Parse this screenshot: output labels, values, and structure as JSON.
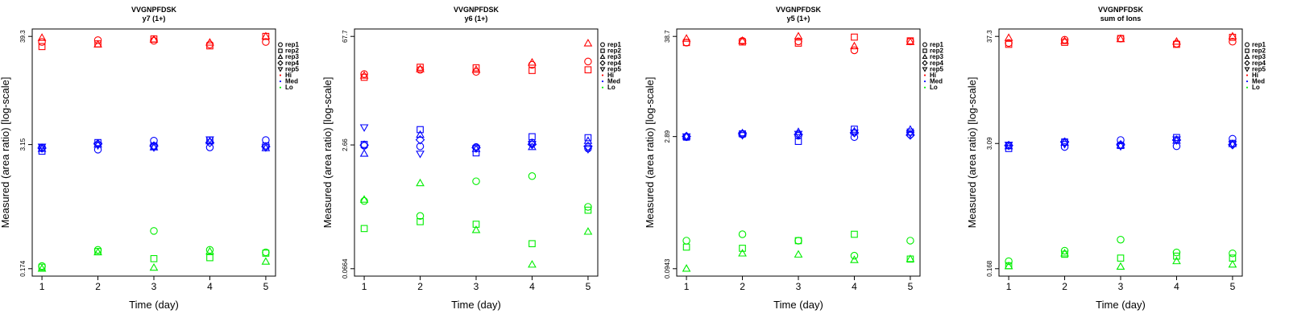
{
  "chart_data": [
    {
      "type": "scatter",
      "title": "VVGNPFDSK",
      "subtitle": "y7 (1+)",
      "xlabel": "Time (day)",
      "ylabel": "Measured (area ratio) [log-scale]",
      "log_scale_y": true,
      "x_ticks": [
        1,
        2,
        3,
        4,
        5
      ],
      "y_ticks": [
        "0.174",
        "3.15",
        "39.3"
      ],
      "ylim": [
        0.174,
        39.3
      ],
      "legend": {
        "position": "right",
        "entries": [
          {
            "label": "rep1",
            "marker": "circle",
            "color": "#000000"
          },
          {
            "label": "rep2",
            "marker": "square",
            "color": "#000000"
          },
          {
            "label": "rep3",
            "marker": "triangle-up",
            "color": "#000000"
          },
          {
            "label": "rep4",
            "marker": "diamond",
            "color": "#000000"
          },
          {
            "label": "rep5",
            "marker": "triangle-down",
            "color": "#000000"
          },
          {
            "label": "Hi",
            "marker": "dot",
            "color": "#ff0000"
          },
          {
            "label": "Med",
            "marker": "dot",
            "color": "#0000ff"
          },
          {
            "label": "Lo",
            "marker": "dot",
            "color": "#00ee00"
          }
        ]
      },
      "series": [
        {
          "level": "Hi",
          "rep": "rep1",
          "x": [
            1,
            2,
            3,
            4,
            5
          ],
          "y": [
            34.5,
            36.0,
            35.5,
            32.5,
            34.5
          ]
        },
        {
          "level": "Hi",
          "rep": "rep2",
          "x": [
            1,
            2,
            3,
            4,
            5
          ],
          "y": [
            31.0,
            33.0,
            37.0,
            31.5,
            39.3
          ]
        },
        {
          "level": "Hi",
          "rep": "rep3",
          "x": [
            1,
            2,
            3,
            4,
            5
          ],
          "y": [
            38.0,
            32.5,
            36.5,
            34.0,
            39.3
          ]
        },
        {
          "level": "Med",
          "rep": "rep1",
          "x": [
            1,
            2,
            3,
            4,
            5
          ],
          "y": [
            2.95,
            2.8,
            3.45,
            2.95,
            3.5
          ]
        },
        {
          "level": "Med",
          "rep": "rep2",
          "x": [
            1,
            2,
            3,
            4,
            5
          ],
          "y": [
            2.7,
            3.3,
            3.05,
            3.5,
            3.05
          ]
        },
        {
          "level": "Med",
          "rep": "rep3",
          "x": [
            1,
            2,
            3,
            4,
            5
          ],
          "y": [
            2.85,
            3.15,
            2.95,
            3.4,
            2.9
          ]
        },
        {
          "level": "Med",
          "rep": "rep4",
          "x": [
            1,
            2,
            3,
            4,
            5
          ],
          "y": [
            2.9,
            3.2,
            3.05,
            3.3,
            3.0
          ]
        },
        {
          "level": "Med",
          "rep": "rep5",
          "x": [
            1,
            2,
            3,
            4,
            5
          ],
          "y": [
            3.0,
            3.1,
            2.95,
            3.55,
            2.95
          ]
        },
        {
          "level": "Lo",
          "rep": "rep1",
          "x": [
            1,
            2,
            3,
            4,
            5
          ],
          "y": [
            0.185,
            0.27,
            0.42,
            0.27,
            0.255
          ]
        },
        {
          "level": "Lo",
          "rep": "rep2",
          "x": [
            1,
            2,
            3,
            4,
            5
          ],
          "y": [
            0.18,
            0.26,
            0.22,
            0.225,
            0.25
          ]
        },
        {
          "level": "Lo",
          "rep": "rep3",
          "x": [
            1,
            2,
            3,
            4,
            5
          ],
          "y": [
            0.174,
            0.255,
            0.178,
            0.26,
            0.205
          ]
        }
      ]
    },
    {
      "type": "scatter",
      "title": "VVGNPFDSK",
      "subtitle": "y6 (1+)",
      "xlabel": "Time (day)",
      "ylabel": "Measured (area ratio) [log-scale]",
      "log_scale_y": true,
      "x_ticks": [
        1,
        2,
        3,
        4,
        5
      ],
      "y_ticks": [
        "0.0664",
        "2.66",
        "67.7"
      ],
      "ylim": [
        0.0664,
        67.7
      ],
      "legend": {
        "position": "right",
        "entries": [
          {
            "label": "rep1",
            "marker": "circle",
            "color": "#000000"
          },
          {
            "label": "rep2",
            "marker": "square",
            "color": "#000000"
          },
          {
            "label": "rep3",
            "marker": "triangle-up",
            "color": "#000000"
          },
          {
            "label": "rep4",
            "marker": "diamond",
            "color": "#000000"
          },
          {
            "label": "rep5",
            "marker": "triangle-down",
            "color": "#000000"
          },
          {
            "label": "Hi",
            "marker": "dot",
            "color": "#ff0000"
          },
          {
            "label": "Med",
            "marker": "dot",
            "color": "#0000ff"
          },
          {
            "label": "Lo",
            "marker": "dot",
            "color": "#00ee00"
          }
        ]
      },
      "series": [
        {
          "level": "Hi",
          "rep": "rep1",
          "x": [
            1,
            2,
            3,
            4,
            5
          ],
          "y": [
            22.0,
            25.0,
            23.5,
            29.0,
            32.0
          ]
        },
        {
          "level": "Hi",
          "rep": "rep2",
          "x": [
            1,
            2,
            3,
            4,
            5
          ],
          "y": [
            20.0,
            27.0,
            26.5,
            24.5,
            25.0
          ]
        },
        {
          "level": "Hi",
          "rep": "rep3",
          "x": [
            1,
            2,
            3,
            4,
            5
          ],
          "y": [
            21.0,
            25.5,
            25.0,
            31.0,
            55.0
          ]
        },
        {
          "level": "Med",
          "rep": "rep1",
          "x": [
            1,
            2,
            3,
            4,
            5
          ],
          "y": [
            2.6,
            2.55,
            2.5,
            2.85,
            2.4
          ]
        },
        {
          "level": "Med",
          "rep": "rep2",
          "x": [
            1,
            2,
            3,
            4,
            5
          ],
          "y": [
            2.7,
            4.2,
            2.1,
            3.4,
            3.3
          ]
        },
        {
          "level": "Med",
          "rep": "rep3",
          "x": [
            1,
            2,
            3,
            4,
            5
          ],
          "y": [
            2.05,
            3.6,
            2.35,
            2.5,
            3.0
          ]
        },
        {
          "level": "Med",
          "rep": "rep4",
          "x": [
            1,
            2,
            3,
            4,
            5
          ],
          "y": [
            2.65,
            3.1,
            2.45,
            2.7,
            2.55
          ]
        },
        {
          "level": "Med",
          "rep": "rep5",
          "x": [
            1,
            2,
            3,
            4,
            5
          ],
          "y": [
            4.5,
            2.05,
            2.4,
            2.75,
            2.35
          ]
        },
        {
          "level": "Lo",
          "rep": "rep1",
          "x": [
            1,
            2,
            3,
            4,
            5
          ],
          "y": [
            0.5,
            0.32,
            0.9,
            1.05,
            0.42
          ]
        },
        {
          "level": "Lo",
          "rep": "rep2",
          "x": [
            1,
            2,
            3,
            4,
            5
          ],
          "y": [
            0.22,
            0.27,
            0.25,
            0.14,
            0.38
          ]
        },
        {
          "level": "Lo",
          "rep": "rep3",
          "x": [
            1,
            2,
            3,
            4,
            5
          ],
          "y": [
            0.52,
            0.85,
            0.21,
            0.075,
            0.2
          ]
        }
      ]
    },
    {
      "type": "scatter",
      "title": "VVGNPFDSK",
      "subtitle": "y5 (1+)",
      "xlabel": "Time (day)",
      "ylabel": "Measured (area ratio) [log-scale]",
      "log_scale_y": true,
      "x_ticks": [
        1,
        2,
        3,
        4,
        5
      ],
      "y_ticks": [
        "0.0943",
        "2.89",
        "38.7"
      ],
      "ylim": [
        0.0943,
        38.7
      ],
      "legend": {
        "position": "right",
        "entries": [
          {
            "label": "rep1",
            "marker": "circle",
            "color": "#000000"
          },
          {
            "label": "rep2",
            "marker": "square",
            "color": "#000000"
          },
          {
            "label": "rep3",
            "marker": "triangle-up",
            "color": "#000000"
          },
          {
            "label": "rep4",
            "marker": "diamond",
            "color": "#000000"
          },
          {
            "label": "rep5",
            "marker": "triangle-down",
            "color": "#000000"
          },
          {
            "label": "Hi",
            "marker": "dot",
            "color": "#ff0000"
          },
          {
            "label": "Med",
            "marker": "dot",
            "color": "#0000ff"
          },
          {
            "label": "Lo",
            "marker": "dot",
            "color": "#00ee00"
          }
        ]
      },
      "series": [
        {
          "level": "Hi",
          "rep": "rep1",
          "x": [
            1,
            2,
            3,
            4,
            5
          ],
          "y": [
            33.0,
            34.5,
            34.0,
            27.0,
            34.0
          ]
        },
        {
          "level": "Hi",
          "rep": "rep2",
          "x": [
            1,
            2,
            3,
            4,
            5
          ],
          "y": [
            33.0,
            33.5,
            32.5,
            38.0,
            34.5
          ]
        },
        {
          "level": "Hi",
          "rep": "rep3",
          "x": [
            1,
            2,
            3,
            4,
            5
          ],
          "y": [
            36.5,
            34.5,
            38.7,
            30.0,
            33.5
          ]
        },
        {
          "level": "Med",
          "rep": "rep1",
          "x": [
            1,
            2,
            3,
            4,
            5
          ],
          "y": [
            2.85,
            3.05,
            2.95,
            2.85,
            3.05
          ]
        },
        {
          "level": "Med",
          "rep": "rep2",
          "x": [
            1,
            2,
            3,
            4,
            5
          ],
          "y": [
            2.85,
            3.1,
            2.55,
            3.5,
            3.25
          ]
        },
        {
          "level": "Med",
          "rep": "rep3",
          "x": [
            1,
            2,
            3,
            4,
            5
          ],
          "y": [
            2.9,
            3.15,
            3.25,
            3.3,
            3.45
          ]
        },
        {
          "level": "Med",
          "rep": "rep4",
          "x": [
            1,
            2,
            3,
            4,
            5
          ],
          "y": [
            2.9,
            3.1,
            3.05,
            3.2,
            3.0
          ]
        },
        {
          "level": "Med",
          "rep": "rep5",
          "x": [
            1,
            2,
            3,
            4,
            5
          ],
          "y": [
            2.9,
            3.0,
            3.1,
            3.2,
            3.15
          ]
        },
        {
          "level": "Lo",
          "rep": "rep1",
          "x": [
            1,
            2,
            3,
            4,
            5
          ],
          "y": [
            0.195,
            0.23,
            0.195,
            0.132,
            0.195
          ]
        },
        {
          "level": "Lo",
          "rep": "rep2",
          "x": [
            1,
            2,
            3,
            4,
            5
          ],
          "y": [
            0.165,
            0.16,
            0.195,
            0.23,
            0.121
          ]
        },
        {
          "level": "Lo",
          "rep": "rep3",
          "x": [
            1,
            2,
            3,
            4,
            5
          ],
          "y": [
            0.0943,
            0.14,
            0.136,
            0.118,
            0.121
          ]
        }
      ]
    },
    {
      "type": "scatter",
      "title": "VVGNPFDSK",
      "subtitle": "sum of Ions",
      "xlabel": "Time (day)",
      "ylabel": "Measured (area ratio) [log-scale]",
      "log_scale_y": true,
      "x_ticks": [
        1,
        2,
        3,
        4,
        5
      ],
      "y_ticks": [
        "0.168",
        "3.09",
        "37.3"
      ],
      "ylim": [
        0.168,
        37.3
      ],
      "legend": {
        "position": "right",
        "entries": [
          {
            "label": "rep1",
            "marker": "circle",
            "color": "#000000"
          },
          {
            "label": "rep2",
            "marker": "square",
            "color": "#000000"
          },
          {
            "label": "rep3",
            "marker": "triangle-up",
            "color": "#000000"
          },
          {
            "label": "rep4",
            "marker": "diamond",
            "color": "#000000"
          },
          {
            "label": "rep5",
            "marker": "triangle-down",
            "color": "#000000"
          },
          {
            "label": "Hi",
            "marker": "dot",
            "color": "#ff0000"
          },
          {
            "label": "Med",
            "marker": "dot",
            "color": "#0000ff"
          },
          {
            "label": "Lo",
            "marker": "dot",
            "color": "#00ee00"
          }
        ]
      },
      "series": [
        {
          "level": "Hi",
          "rep": "rep1",
          "x": [
            1,
            2,
            3,
            4,
            5
          ],
          "y": [
            32.0,
            34.5,
            35.5,
            31.5,
            33.0
          ]
        },
        {
          "level": "Hi",
          "rep": "rep2",
          "x": [
            1,
            2,
            3,
            4,
            5
          ],
          "y": [
            31.0,
            32.5,
            35.5,
            31.0,
            36.5
          ]
        },
        {
          "level": "Hi",
          "rep": "rep3",
          "x": [
            1,
            2,
            3,
            4,
            5
          ],
          "y": [
            36.0,
            33.5,
            35.0,
            33.0,
            37.3
          ]
        },
        {
          "level": "Med",
          "rep": "rep1",
          "x": [
            1,
            2,
            3,
            4,
            5
          ],
          "y": [
            2.95,
            2.85,
            3.35,
            2.9,
            3.45
          ]
        },
        {
          "level": "Med",
          "rep": "rep2",
          "x": [
            1,
            2,
            3,
            4,
            5
          ],
          "y": [
            2.75,
            3.2,
            2.95,
            3.55,
            3.1
          ]
        },
        {
          "level": "Med",
          "rep": "rep3",
          "x": [
            1,
            2,
            3,
            4,
            5
          ],
          "y": [
            2.9,
            3.15,
            2.95,
            3.3,
            3.05
          ]
        },
        {
          "level": "Med",
          "rep": "rep4",
          "x": [
            1,
            2,
            3,
            4,
            5
          ],
          "y": [
            2.95,
            3.2,
            3.0,
            3.35,
            3.0
          ]
        },
        {
          "level": "Med",
          "rep": "rep5",
          "x": [
            1,
            2,
            3,
            4,
            5
          ],
          "y": [
            3.0,
            3.05,
            2.9,
            3.4,
            3.05
          ]
        },
        {
          "level": "Lo",
          "rep": "rep1",
          "x": [
            1,
            2,
            3,
            4,
            5
          ],
          "y": [
            0.2,
            0.255,
            0.33,
            0.245,
            0.24
          ]
        },
        {
          "level": "Lo",
          "rep": "rep2",
          "x": [
            1,
            2,
            3,
            4,
            5
          ],
          "y": [
            0.18,
            0.235,
            0.215,
            0.225,
            0.215
          ]
        },
        {
          "level": "Lo",
          "rep": "rep3",
          "x": [
            1,
            2,
            3,
            4,
            5
          ],
          "y": [
            0.178,
            0.24,
            0.176,
            0.2,
            0.185
          ]
        }
      ]
    }
  ]
}
